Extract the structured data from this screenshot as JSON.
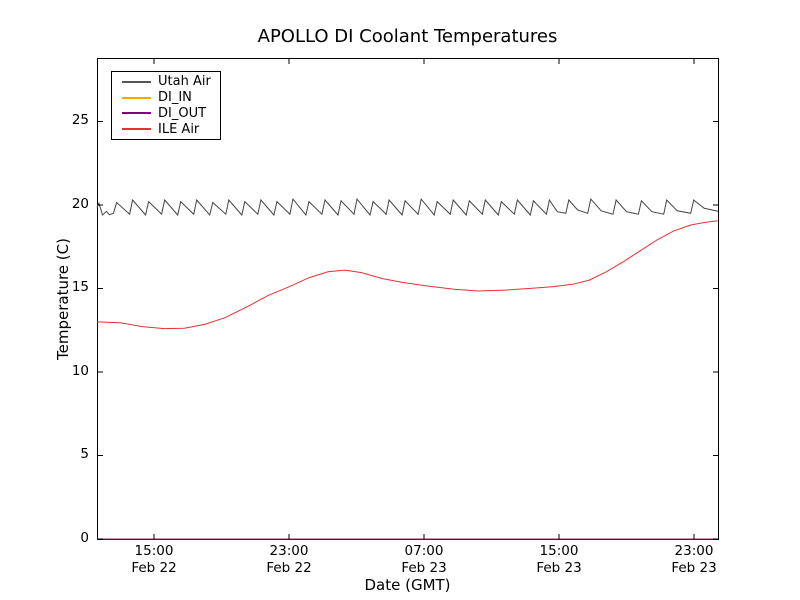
{
  "title": "APOLLO DI Coolant Temperatures",
  "xlabel": "Date (GMT)",
  "ylabel": "Temperature (C)",
  "legend": {
    "position": "upper left",
    "items": [
      {
        "label": "Utah Air",
        "color": "#555555"
      },
      {
        "label": "DI_IN",
        "color": "#ffa500"
      },
      {
        "label": "DI_OUT",
        "color": "#800080"
      },
      {
        "label": "ILE Air",
        "color": "#e83030"
      }
    ]
  },
  "chart_data": {
    "type": "line",
    "title": "APOLLO DI Coolant Temperatures",
    "xlabel": "Date (GMT)",
    "ylabel": "Temperature (C)",
    "grid": false,
    "legend_position": "upper left",
    "x_unit": "hours since Feb 22 00:00 GMT",
    "xlim": [
      11.62,
      48.42
    ],
    "ylim": [
      0,
      28.8
    ],
    "y_ticks": [
      0,
      5,
      10,
      15,
      20,
      25
    ],
    "x_ticks": [
      {
        "t": 15,
        "time": "15:00",
        "date": "Feb 22"
      },
      {
        "t": 23,
        "time": "23:00",
        "date": "Feb 22"
      },
      {
        "t": 31,
        "time": "07:00",
        "date": "Feb 23"
      },
      {
        "t": 39,
        "time": "15:00",
        "date": "Feb 23"
      },
      {
        "t": 47,
        "time": "23:00",
        "date": "Feb 23"
      }
    ],
    "series": [
      {
        "name": "Utah Air",
        "color": "#444444",
        "width": 1,
        "opacity": 1,
        "points": [
          [
            11.62,
            19.85
          ],
          [
            11.73,
            20.1
          ],
          [
            11.95,
            19.4
          ],
          [
            12.18,
            19.62
          ],
          [
            12.35,
            19.42
          ],
          [
            12.6,
            19.5
          ],
          [
            12.78,
            20.15
          ],
          [
            13.55,
            19.45
          ],
          [
            13.73,
            20.3
          ],
          [
            14.5,
            19.4
          ],
          [
            14.68,
            20.2
          ],
          [
            15.45,
            19.45
          ],
          [
            15.63,
            20.3
          ],
          [
            16.4,
            19.4
          ],
          [
            16.58,
            20.2
          ],
          [
            17.35,
            19.45
          ],
          [
            17.53,
            20.3
          ],
          [
            18.3,
            19.4
          ],
          [
            18.48,
            20.15
          ],
          [
            19.25,
            19.45
          ],
          [
            19.43,
            20.3
          ],
          [
            20.2,
            19.4
          ],
          [
            20.38,
            20.2
          ],
          [
            21.15,
            19.45
          ],
          [
            21.33,
            20.3
          ],
          [
            22.1,
            19.4
          ],
          [
            22.28,
            20.2
          ],
          [
            23.05,
            19.45
          ],
          [
            23.23,
            20.35
          ],
          [
            24.0,
            19.4
          ],
          [
            24.18,
            20.2
          ],
          [
            24.95,
            19.45
          ],
          [
            25.13,
            20.3
          ],
          [
            25.9,
            19.4
          ],
          [
            26.08,
            20.25
          ],
          [
            26.85,
            19.45
          ],
          [
            27.03,
            20.35
          ],
          [
            27.8,
            19.4
          ],
          [
            27.98,
            20.2
          ],
          [
            28.75,
            19.45
          ],
          [
            28.93,
            20.3
          ],
          [
            29.7,
            19.4
          ],
          [
            29.88,
            20.25
          ],
          [
            30.65,
            19.45
          ],
          [
            30.83,
            20.35
          ],
          [
            31.6,
            19.4
          ],
          [
            31.78,
            20.2
          ],
          [
            32.55,
            19.45
          ],
          [
            32.73,
            20.3
          ],
          [
            33.5,
            19.4
          ],
          [
            33.68,
            20.25
          ],
          [
            34.45,
            19.45
          ],
          [
            34.63,
            20.3
          ],
          [
            35.4,
            19.4
          ],
          [
            35.58,
            20.2
          ],
          [
            36.35,
            19.45
          ],
          [
            36.53,
            20.3
          ],
          [
            37.3,
            19.4
          ],
          [
            37.48,
            20.25
          ],
          [
            38.25,
            19.45
          ],
          [
            38.43,
            20.3
          ],
          [
            38.9,
            19.6
          ],
          [
            39.4,
            19.5
          ],
          [
            39.58,
            20.3
          ],
          [
            40.1,
            19.7
          ],
          [
            40.7,
            19.5
          ],
          [
            40.88,
            20.35
          ],
          [
            41.5,
            19.65
          ],
          [
            42.2,
            19.45
          ],
          [
            42.38,
            20.3
          ],
          [
            43.0,
            19.6
          ],
          [
            43.7,
            19.45
          ],
          [
            43.88,
            20.25
          ],
          [
            44.5,
            19.6
          ],
          [
            45.2,
            19.45
          ],
          [
            45.38,
            20.3
          ],
          [
            46.0,
            19.65
          ],
          [
            46.8,
            19.5
          ],
          [
            46.98,
            20.3
          ],
          [
            47.6,
            19.8
          ],
          [
            48.42,
            19.62
          ]
        ]
      },
      {
        "name": "DI_IN",
        "color": "#ffa500",
        "width": 1,
        "opacity": 1,
        "points": [
          [
            11.62,
            0
          ],
          [
            48.42,
            0
          ]
        ]
      },
      {
        "name": "DI_OUT",
        "color": "#800080",
        "width": 1,
        "opacity": 0.75,
        "points": [
          [
            11.62,
            0
          ],
          [
            48.42,
            0
          ]
        ]
      },
      {
        "name": "ILE Air",
        "color": "#e83030",
        "width": 1,
        "opacity": 1,
        "points": [
          [
            11.62,
            13.0
          ],
          [
            13.0,
            12.95
          ],
          [
            14.3,
            12.72
          ],
          [
            15.6,
            12.6
          ],
          [
            16.8,
            12.62
          ],
          [
            18.0,
            12.85
          ],
          [
            19.2,
            13.25
          ],
          [
            20.5,
            13.9
          ],
          [
            21.8,
            14.6
          ],
          [
            23.0,
            15.1
          ],
          [
            24.2,
            15.65
          ],
          [
            25.3,
            16.0
          ],
          [
            26.3,
            16.1
          ],
          [
            27.3,
            15.95
          ],
          [
            28.5,
            15.6
          ],
          [
            29.8,
            15.35
          ],
          [
            31.2,
            15.15
          ],
          [
            32.8,
            14.95
          ],
          [
            34.2,
            14.85
          ],
          [
            35.8,
            14.9
          ],
          [
            37.2,
            15.0
          ],
          [
            38.6,
            15.1
          ],
          [
            39.8,
            15.25
          ],
          [
            40.8,
            15.5
          ],
          [
            41.8,
            16.0
          ],
          [
            42.8,
            16.6
          ],
          [
            43.8,
            17.25
          ],
          [
            44.8,
            17.9
          ],
          [
            45.8,
            18.45
          ],
          [
            46.8,
            18.8
          ],
          [
            47.6,
            18.95
          ],
          [
            48.42,
            19.05
          ]
        ]
      }
    ]
  }
}
